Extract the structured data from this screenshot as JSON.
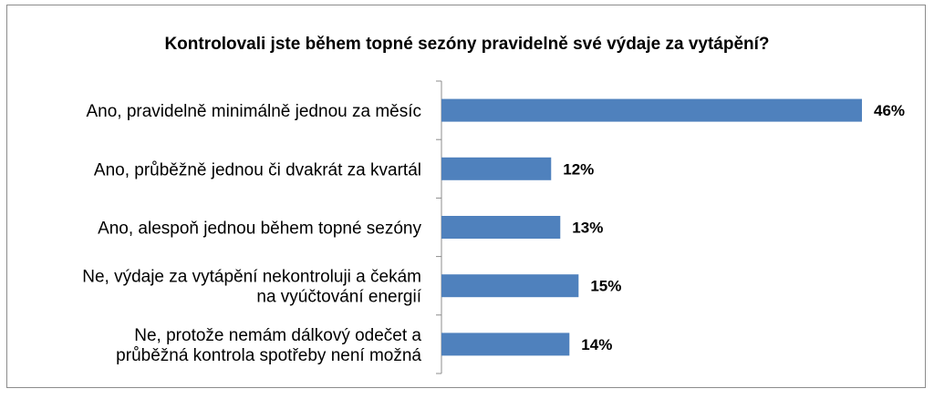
{
  "chart_data": {
    "type": "bar",
    "orientation": "horizontal",
    "title": "Kontrolovali jste během topné sezóny pravidelně své výdaje za vytápění?",
    "categories": [
      [
        "Ano, pravidelně minimálně jednou za měsíc"
      ],
      [
        "Ano, průběžně jednou či dvakrát za kvartál"
      ],
      [
        "Ano, alespoň jednou během topné sezóny"
      ],
      [
        "Ne, výdaje za vytápění nekontroluji a čekám",
        "na vyúčtování energií"
      ],
      [
        "Ne, protože nemám dálkový odečet a",
        "průběžná kontrola spotřeby není možná"
      ]
    ],
    "values": [
      46,
      12,
      13,
      15,
      14
    ],
    "value_labels": [
      "46%",
      "12%",
      "13%",
      "15%",
      "14%"
    ],
    "xlim": [
      0,
      46
    ],
    "bar_color": "#4f81bd",
    "gridlines": false,
    "legend": "none"
  }
}
